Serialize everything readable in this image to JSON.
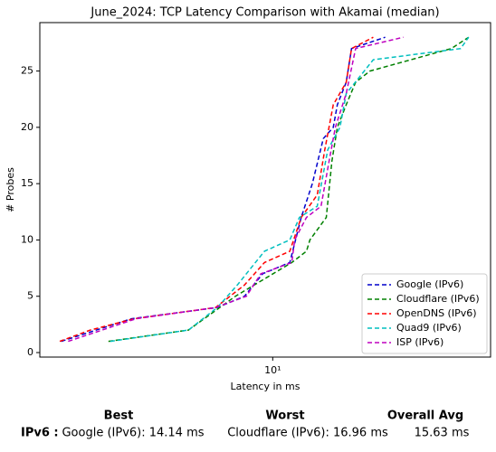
{
  "chart_data": {
    "type": "line",
    "title": "June_2024: TCP Latency Comparison with Akamai (median)",
    "xlabel": "Latency in ms",
    "ylabel": "# Probes",
    "xscale": "log",
    "xlim": [
      1.33,
      66
    ],
    "xticks": [
      {
        "value": 10,
        "label": "10¹"
      }
    ],
    "ylim": [
      -0.4,
      29.3
    ],
    "yticks": [
      0,
      5,
      10,
      15,
      20,
      25
    ],
    "legend": "lower right",
    "linestyle": "dashed",
    "series": [
      {
        "name": "Google (IPv6)",
        "color": "#0000cc",
        "x": [
          1.6,
          2.94,
          6.19,
          7.83,
          9.17,
          11.6,
          12.8,
          14.1,
          15.5,
          16.9,
          17.5,
          18.9,
          19.8,
          26.5
        ],
        "values": [
          1,
          3,
          4,
          5,
          7,
          8,
          12,
          15,
          19,
          20,
          22,
          24,
          27,
          28
        ]
      },
      {
        "name": "Cloudflare (IPv6)",
        "color": "#008000",
        "x": [
          2.41,
          4.82,
          7.24,
          11.8,
          13.4,
          13.8,
          15.9,
          16.7,
          17.5,
          18.9,
          20.5,
          23.2,
          47.0,
          54.6
        ],
        "values": [
          1,
          2,
          5,
          8,
          9,
          10,
          12,
          17,
          20,
          22,
          24,
          25,
          27,
          28
        ]
      },
      {
        "name": "OpenDNS (IPv6)",
        "color": "#ff0000",
        "x": [
          1.58,
          2.06,
          3.01,
          6.09,
          7.83,
          9.31,
          11.6,
          12.8,
          14.7,
          15.7,
          16.9,
          18.9,
          19.8,
          23.9
        ],
        "values": [
          1,
          2,
          3,
          4,
          6,
          8,
          9,
          12,
          14,
          18,
          22,
          24,
          27,
          28
        ]
      },
      {
        "name": "Quad9 (IPv6)",
        "color": "#00bfbf",
        "x": [
          2.45,
          4.82,
          6.19,
          7.36,
          9.31,
          11.6,
          12.6,
          14.7,
          16.1,
          17.9,
          18.9,
          23.9,
          50.9,
          54.6
        ],
        "values": [
          1,
          2,
          4,
          6,
          9,
          10,
          12,
          13,
          18,
          20,
          23,
          26,
          27,
          28
        ]
      },
      {
        "name": "ISP (IPv6)",
        "color": "#bf00bf",
        "x": [
          1.7,
          3.06,
          6.09,
          7.96,
          9.03,
          11.8,
          12.1,
          13.4,
          15.2,
          16.3,
          17.2,
          18.9,
          20.5,
          31.0
        ],
        "values": [
          1,
          3,
          4,
          5,
          7,
          8,
          10,
          12,
          13,
          17,
          20,
          23,
          27,
          28
        ]
      }
    ]
  },
  "summary": {
    "headers": [
      "Best",
      "Worst",
      "Overall Avg"
    ],
    "row_label": "IPv6 :",
    "cells": [
      "Google (IPv6): 14.14 ms",
      "Cloudflare (IPv6): 16.96 ms",
      "15.63 ms"
    ]
  }
}
